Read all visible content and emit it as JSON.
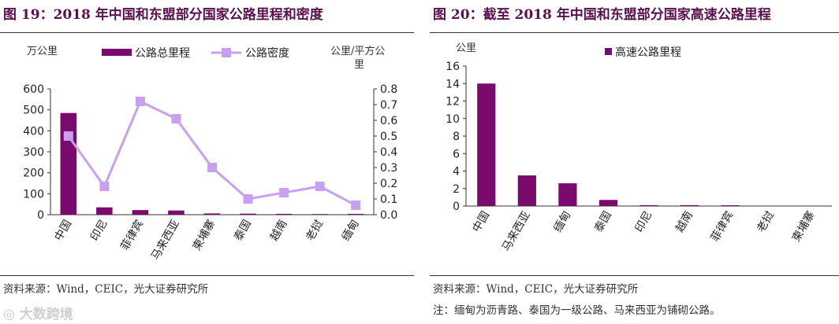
{
  "left": {
    "title": "图 19：2018 年中国和东盟部分国家公路里程和密度",
    "left_unit": "万公里",
    "right_unit_line1": "公里/平方公",
    "right_unit_line2": "里",
    "source": "资料来源：Wind，CEIC，光大证券研究所"
  },
  "right": {
    "title": "图 20：截至 2018 年中国和东盟部分国家高速公路里程",
    "unit": "公里",
    "source": "资料来源：Wind，CEIC，光大证券研究所",
    "note": "注：缅甸为沥青路、泰国为一级公路、马来西亚为铺砌公路。"
  },
  "watermark": "大数跨境",
  "colors": {
    "bar": "#7b0a6e",
    "line": "#c8a0f0",
    "title": "#5b0f4e"
  },
  "chart_data": [
    {
      "type": "bar+line",
      "title": "图 19：2018 年中国和东盟部分国家公路里程和密度",
      "categories": [
        "中国",
        "印尼",
        "菲律宾",
        "马来西亚",
        "柬埔寨",
        "泰国",
        "越南",
        "老挝",
        "缅甸"
      ],
      "series": [
        {
          "name": "公路总里程",
          "type": "bar",
          "axis": "left",
          "values": [
            485,
            35,
            22,
            20,
            6,
            5,
            4,
            3,
            4
          ]
        },
        {
          "name": "公路密度",
          "type": "line",
          "axis": "right",
          "values": [
            0.5,
            0.18,
            0.72,
            0.61,
            0.3,
            0.1,
            0.14,
            0.18,
            0.06
          ]
        }
      ],
      "ylabel_left": "万公里",
      "ylabel_right": "公里/平方公里",
      "ylim_left": [
        0,
        600
      ],
      "yticks_left": [
        "0",
        "100",
        "200",
        "300",
        "400",
        "500",
        "600"
      ],
      "ylim_right": [
        0,
        0.8
      ],
      "yticks_right": [
        "0.0",
        "0.1",
        "0.2",
        "0.3",
        "0.4",
        "0.5",
        "0.6",
        "0.7",
        "0.8"
      ],
      "legend": "top"
    },
    {
      "type": "bar",
      "title": "图 20：截至 2018 年中国和东盟部分国家高速公路里程",
      "categories": [
        "中国",
        "马来西亚",
        "缅甸",
        "泰国",
        "印尼",
        "越南",
        "菲律宾",
        "老挝",
        "柬埔寨"
      ],
      "series": [
        {
          "name": "高速公路里程",
          "values": [
            14,
            3.5,
            2.6,
            0.7,
            0.1,
            0.1,
            0.05,
            0,
            0
          ]
        }
      ],
      "ylabel": "公里",
      "ylim": [
        0,
        16
      ],
      "yticks": [
        "0",
        "2",
        "4",
        "6",
        "8",
        "10",
        "12",
        "14",
        "16"
      ],
      "legend": "top"
    }
  ]
}
